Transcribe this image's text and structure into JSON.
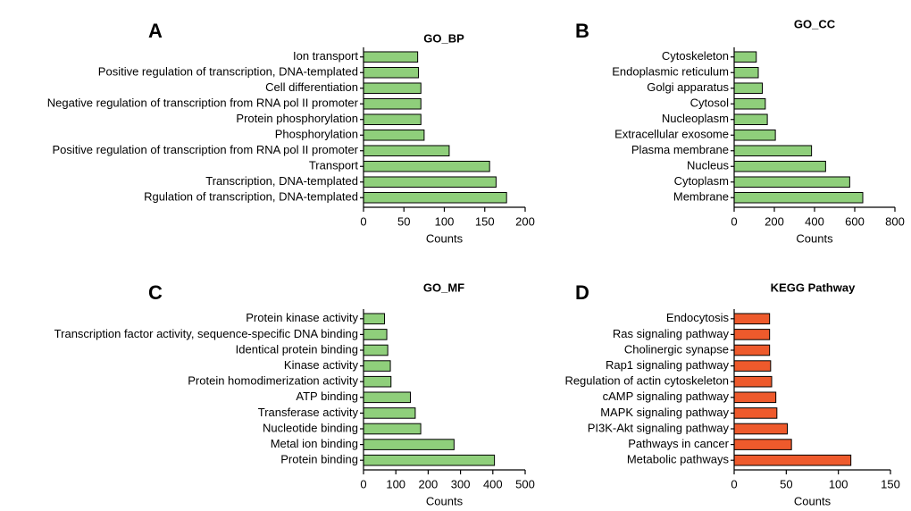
{
  "chart_data": [
    {
      "type": "bar",
      "orientation": "horizontal",
      "panel": "A",
      "title": "GO_BP",
      "xlabel": "Counts",
      "xlim": [
        0,
        200
      ],
      "xticks": [
        0,
        50,
        100,
        150,
        200
      ],
      "bar_color": "#8fcf7b",
      "categories": [
        "Ion transport",
        "Positive regulation of transcription, DNA-templated",
        "Cell differentiation",
        "Negative regulation of transcription from RNA pol II promoter",
        "Protein phosphorylation",
        "Phosphorylation",
        "Positive regulation of transcription from RNA pol II promoter",
        "Transport",
        "Transcription, DNA-templated",
        "Rgulation of transcription, DNA-templated"
      ],
      "values": [
        67,
        68,
        71,
        71,
        71,
        75,
        106,
        156,
        164,
        177
      ]
    },
    {
      "type": "bar",
      "orientation": "horizontal",
      "panel": "B",
      "title": "GO_CC",
      "xlabel": "Counts",
      "xlim": [
        0,
        800
      ],
      "xticks": [
        0,
        200,
        400,
        600,
        800
      ],
      "bar_color": "#8fcf7b",
      "categories": [
        "Cytoskeleton",
        "Endoplasmic reticulum",
        "Golgi apparatus",
        "Cytosol",
        "Nucleoplasm",
        "Extracellular exosome",
        "Plasma membrane",
        "Nucleus",
        "Cytoplasm",
        "Membrane"
      ],
      "values": [
        110,
        120,
        140,
        155,
        165,
        205,
        385,
        455,
        575,
        640
      ]
    },
    {
      "type": "bar",
      "orientation": "horizontal",
      "panel": "C",
      "title": "GO_MF",
      "xlabel": "Counts",
      "xlim": [
        0,
        500
      ],
      "xticks": [
        0,
        100,
        200,
        300,
        400,
        500
      ],
      "bar_color": "#8fcf7b",
      "categories": [
        "Protein kinase activity",
        "Transcription factor activity, sequence-specific DNA binding",
        "Identical protein binding",
        "Kinase activity",
        "Protein homodimerization activity",
        "ATP binding",
        "Transferase activity",
        "Nucleotide binding",
        "Metal ion binding",
        "Protein binding"
      ],
      "values": [
        65,
        72,
        75,
        83,
        85,
        145,
        160,
        177,
        280,
        405
      ]
    },
    {
      "type": "bar",
      "orientation": "horizontal",
      "panel": "D",
      "title": "KEGG Pathway",
      "xlabel": "Counts",
      "xlim": [
        0,
        150
      ],
      "xticks": [
        0,
        50,
        100,
        150
      ],
      "bar_color": "#ee5a2c",
      "categories": [
        "Endocytosis",
        "Ras signaling pathway",
        "Cholinergic synapse",
        "Rap1 signaling pathway",
        "Regulation of actin cytoskeleton",
        "cAMP signaling pathway",
        "MAPK signaling pathway",
        "PI3K-Akt signaling pathway",
        "Pathways in cancer",
        "Metabolic pathways"
      ],
      "values": [
        34,
        34,
        34,
        35,
        36,
        40,
        41,
        51,
        55,
        112
      ]
    }
  ]
}
